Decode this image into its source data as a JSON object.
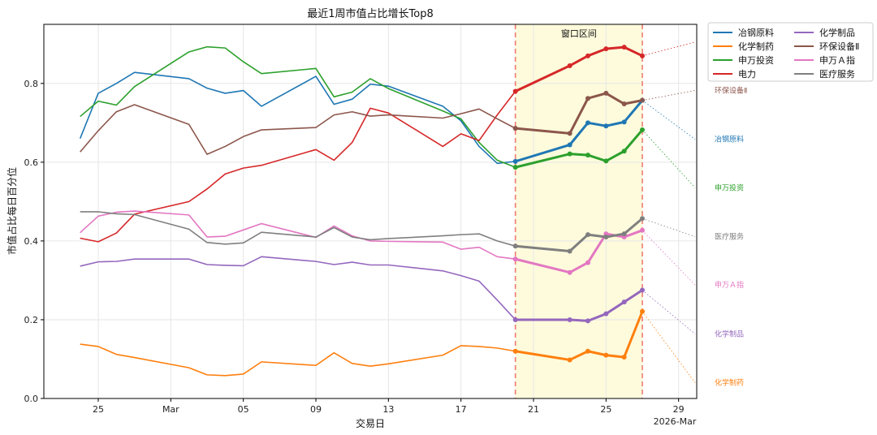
{
  "chart_data": {
    "type": "line",
    "title": "最近1周市值占比增长Top8",
    "xlabel": "交易日",
    "ylabel": "市值占比每日百分位",
    "xlim": [
      "2026-02-22",
      "2026-03-30"
    ],
    "ylim": [
      0,
      0.95
    ],
    "yticks": [
      0.0,
      0.2,
      0.4,
      0.6,
      0.8
    ],
    "ytick_labels": [
      "0.0",
      "0.2",
      "0.4",
      "0.6",
      "0.8"
    ],
    "xticks": [
      "2026-02-25",
      "2026-03-01",
      "2026-03-05",
      "2026-03-09",
      "2026-03-13",
      "2026-03-17",
      "2026-03-21",
      "2026-03-25",
      "2026-03-29"
    ],
    "xtick_labels": [
      "25",
      "Mar",
      "05",
      "09",
      "13",
      "17",
      "21",
      "25",
      "29"
    ],
    "xaxis_offset_label": "2026-Mar",
    "grid": true,
    "legend_placement": "outside top-right",
    "window": {
      "label": "窗口区间",
      "start": "2026-03-20",
      "end": "2026-03-27",
      "fill_color": "#fdfbdc",
      "line_color": "#ef7b70"
    },
    "dates": [
      "2026-02-24",
      "2026-02-25",
      "2026-02-26",
      "2026-02-27",
      "2026-03-02",
      "2026-03-03",
      "2026-03-04",
      "2026-03-05",
      "2026-03-06",
      "2026-03-09",
      "2026-03-10",
      "2026-03-11",
      "2026-03-12",
      "2026-03-13",
      "2026-03-16",
      "2026-03-17",
      "2026-03-18",
      "2026-03-19",
      "2026-03-20",
      "2026-03-23",
      "2026-03-24",
      "2026-03-25",
      "2026-03-26",
      "2026-03-27"
    ],
    "window_start_index": 18,
    "series": [
      {
        "name": "冶钢原料",
        "color": "#1f77b4",
        "values": [
          0.66,
          0.775,
          0.8,
          0.828,
          0.812,
          0.788,
          0.775,
          0.782,
          0.742,
          0.818,
          0.747,
          0.76,
          0.798,
          0.793,
          0.742,
          0.705,
          0.64,
          0.597,
          0.602,
          0.644,
          0.7,
          0.692,
          0.702,
          0.757
        ]
      },
      {
        "name": "化学制药",
        "color": "#ff7f0e",
        "values": [
          0.138,
          0.132,
          0.112,
          0.104,
          0.078,
          0.06,
          0.058,
          0.062,
          0.093,
          0.084,
          0.116,
          0.089,
          0.082,
          0.088,
          0.11,
          0.134,
          0.132,
          0.128,
          0.12,
          0.098,
          0.12,
          0.11,
          0.105,
          0.221
        ]
      },
      {
        "name": "申万投资",
        "color": "#2ca02c",
        "values": [
          0.716,
          0.755,
          0.745,
          0.792,
          0.88,
          0.893,
          0.89,
          0.855,
          0.825,
          0.838,
          0.766,
          0.778,
          0.812,
          0.787,
          0.73,
          0.71,
          0.65,
          0.605,
          0.587,
          0.621,
          0.618,
          0.603,
          0.628,
          0.682
        ]
      },
      {
        "name": "电力",
        "color": "#d62728",
        "values": [
          0.407,
          0.398,
          0.42,
          0.468,
          0.5,
          0.532,
          0.57,
          0.585,
          0.592,
          0.632,
          0.605,
          0.65,
          0.737,
          0.725,
          0.64,
          0.672,
          0.655,
          0.72,
          0.78,
          0.845,
          0.87,
          0.888,
          0.892,
          0.87
        ]
      },
      {
        "name": "化学制品",
        "color": "#9467bd",
        "values": [
          0.336,
          0.347,
          0.348,
          0.354,
          0.354,
          0.34,
          0.338,
          0.337,
          0.36,
          0.348,
          0.34,
          0.346,
          0.339,
          0.339,
          0.324,
          0.312,
          0.298,
          0.25,
          0.2,
          0.2,
          0.197,
          0.215,
          0.245,
          0.275
        ]
      },
      {
        "name": "环保设备Ⅱ",
        "color": "#8c564b",
        "values": [
          0.626,
          0.68,
          0.728,
          0.746,
          0.696,
          0.62,
          0.64,
          0.665,
          0.682,
          0.688,
          0.72,
          0.728,
          0.717,
          0.72,
          0.712,
          0.723,
          0.735,
          0.71,
          0.686,
          0.673,
          0.762,
          0.775,
          0.748,
          0.757
        ]
      },
      {
        "name": "申万Ａ指",
        "color": "#e377c2",
        "values": [
          0.421,
          0.463,
          0.473,
          0.476,
          0.466,
          0.41,
          0.412,
          0.428,
          0.444,
          0.409,
          0.438,
          0.413,
          0.4,
          0.399,
          0.397,
          0.379,
          0.384,
          0.36,
          0.354,
          0.32,
          0.345,
          0.418,
          0.41,
          0.427
        ]
      },
      {
        "name": "医疗服务",
        "color": "#7f7f7f",
        "values": [
          0.474,
          0.474,
          0.469,
          0.467,
          0.43,
          0.396,
          0.392,
          0.395,
          0.422,
          0.41,
          0.434,
          0.41,
          0.403,
          0.406,
          0.413,
          0.416,
          0.418,
          0.4,
          0.387,
          0.374,
          0.416,
          0.41,
          0.418,
          0.457
        ]
      }
    ],
    "end_labels": [
      {
        "name": "电力",
        "color": "#d62728",
        "y": 0.905
      },
      {
        "name": "环保设备Ⅱ",
        "color": "#8c564b",
        "y": 0.782
      },
      {
        "name": "冶钢原料",
        "color": "#1f77b4",
        "y": 0.658
      },
      {
        "name": "申万投资",
        "color": "#2ca02c",
        "y": 0.535
      },
      {
        "name": "医疗服务",
        "color": "#7f7f7f",
        "y": 0.411
      },
      {
        "name": "申万Ａ指",
        "color": "#e377c2",
        "y": 0.288
      },
      {
        "name": "化学制品",
        "color": "#9467bd",
        "y": 0.164
      },
      {
        "name": "化学制药",
        "color": "#ff7f0e",
        "y": 0.04
      }
    ],
    "end_label_date": "2026-03-30"
  }
}
